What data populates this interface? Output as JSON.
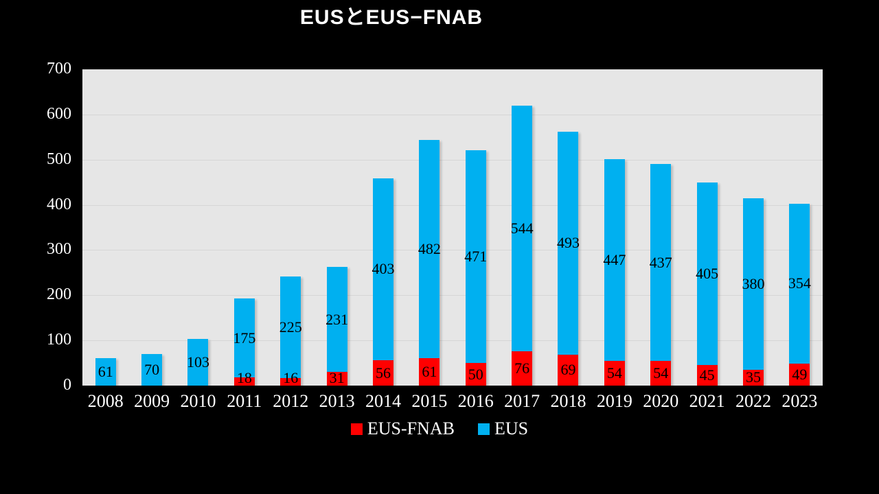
{
  "chart_data": {
    "type": "bar",
    "stacked": true,
    "title": "EUSとEUS−FNAB",
    "xlabel": "",
    "ylabel": "",
    "categories": [
      "2008",
      "2009",
      "2010",
      "2011",
      "2012",
      "2013",
      "2014",
      "2015",
      "2016",
      "2017",
      "2018",
      "2019",
      "2020",
      "2021",
      "2022",
      "2023"
    ],
    "series": [
      {
        "name": "EUS-FNAB",
        "color": "#FF0000",
        "values": [
          0,
          0,
          0,
          18,
          16,
          31,
          56,
          61,
          50,
          76,
          69,
          54,
          54,
          45,
          35,
          49
        ]
      },
      {
        "name": "EUS",
        "color": "#00B0F0",
        "values": [
          61,
          70,
          103,
          175,
          225,
          231,
          403,
          482,
          471,
          544,
          493,
          447,
          437,
          405,
          380,
          354
        ]
      }
    ],
    "ylim": [
      0,
      700
    ],
    "ytick_step": 100,
    "yticks": [
      "0",
      "100",
      "200",
      "300",
      "400",
      "500",
      "600",
      "700"
    ],
    "grid": true,
    "legend_position": "bottom",
    "data_labels": true
  },
  "colors": {
    "background": "#000000",
    "plot_background": "#E6E6E6",
    "gridline": "#D6D6D6",
    "axis_text": "#FFFFFF",
    "data_label_text": "#000000"
  }
}
